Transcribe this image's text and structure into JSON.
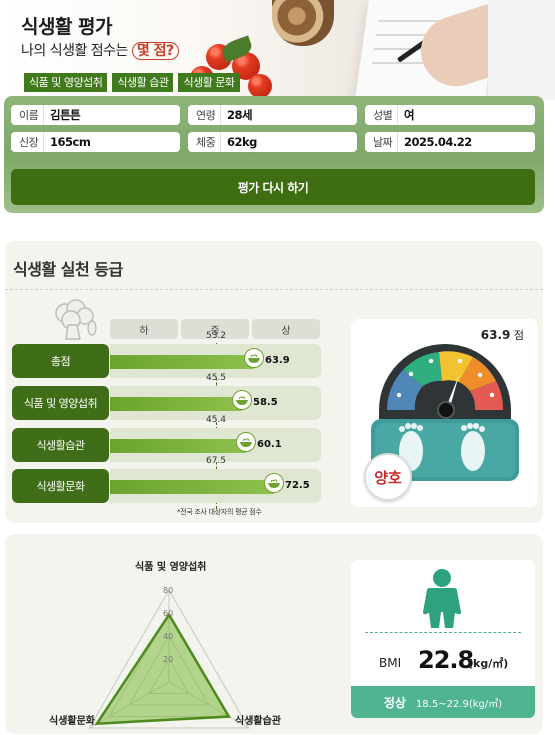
{
  "header": {
    "title": "식생활 평가",
    "subtitle_prefix": "나의 식생활 점수는",
    "subtitle_highlight": "몇 점?",
    "tags": [
      "식품 및 영양섭취",
      "식생활 습관",
      "식생활 문화"
    ]
  },
  "profile": {
    "name": {
      "label": "이름",
      "value": "김튼튼"
    },
    "age": {
      "label": "연령",
      "value": "28세"
    },
    "gender": {
      "label": "성별",
      "value": "여"
    },
    "height": {
      "label": "신장",
      "value": "165cm"
    },
    "weight": {
      "label": "체중",
      "value": "62kg"
    },
    "date": {
      "label": "날짜",
      "value": "2025.04.22"
    },
    "recalc_button": "평가 다시 하기"
  },
  "grade_section": {
    "title": "식생활 실천 등급",
    "levels": [
      "하",
      "중",
      "상"
    ],
    "rows": [
      {
        "label": "총점",
        "score": 63.9,
        "score_text": "63.9",
        "avg": 53.2,
        "avg_text": "53.2"
      },
      {
        "label": "식품 및 영양섭취",
        "score": 58.5,
        "score_text": "58.5",
        "avg": 45.5,
        "avg_text": "45.5"
      },
      {
        "label": "식생활습관",
        "score": 60.1,
        "score_text": "60.1",
        "avg": 45.4,
        "avg_text": "45.4"
      },
      {
        "label": "식생활문화",
        "score": 72.5,
        "score_text": "72.5",
        "avg": 67.5,
        "avg_text": "67.5"
      }
    ],
    "avg_note": "*전국 조사 대상자의 평균 점수",
    "gauge": {
      "score": "63.9",
      "unit": "점",
      "grade": "양호",
      "value": 63.9
    }
  },
  "radar": {
    "axes": [
      "식품 및 영양섭취",
      "식생활습관",
      "식생활문화"
    ],
    "ticks": [
      "80",
      "60",
      "40",
      "20"
    ],
    "values": [
      58.5,
      60.1,
      72.5
    ],
    "max": 80
  },
  "bmi": {
    "label": "BMI",
    "value": "22.8",
    "unit": "(kg/㎡)",
    "status": "정상",
    "range": "18.5~22.9(kg/㎡)"
  },
  "colors": {
    "primary_green": "#3f6d18",
    "bar_green": "#6ba32e",
    "bmi_teal": "#4fb48f",
    "grade_red": "#c22f2f"
  }
}
